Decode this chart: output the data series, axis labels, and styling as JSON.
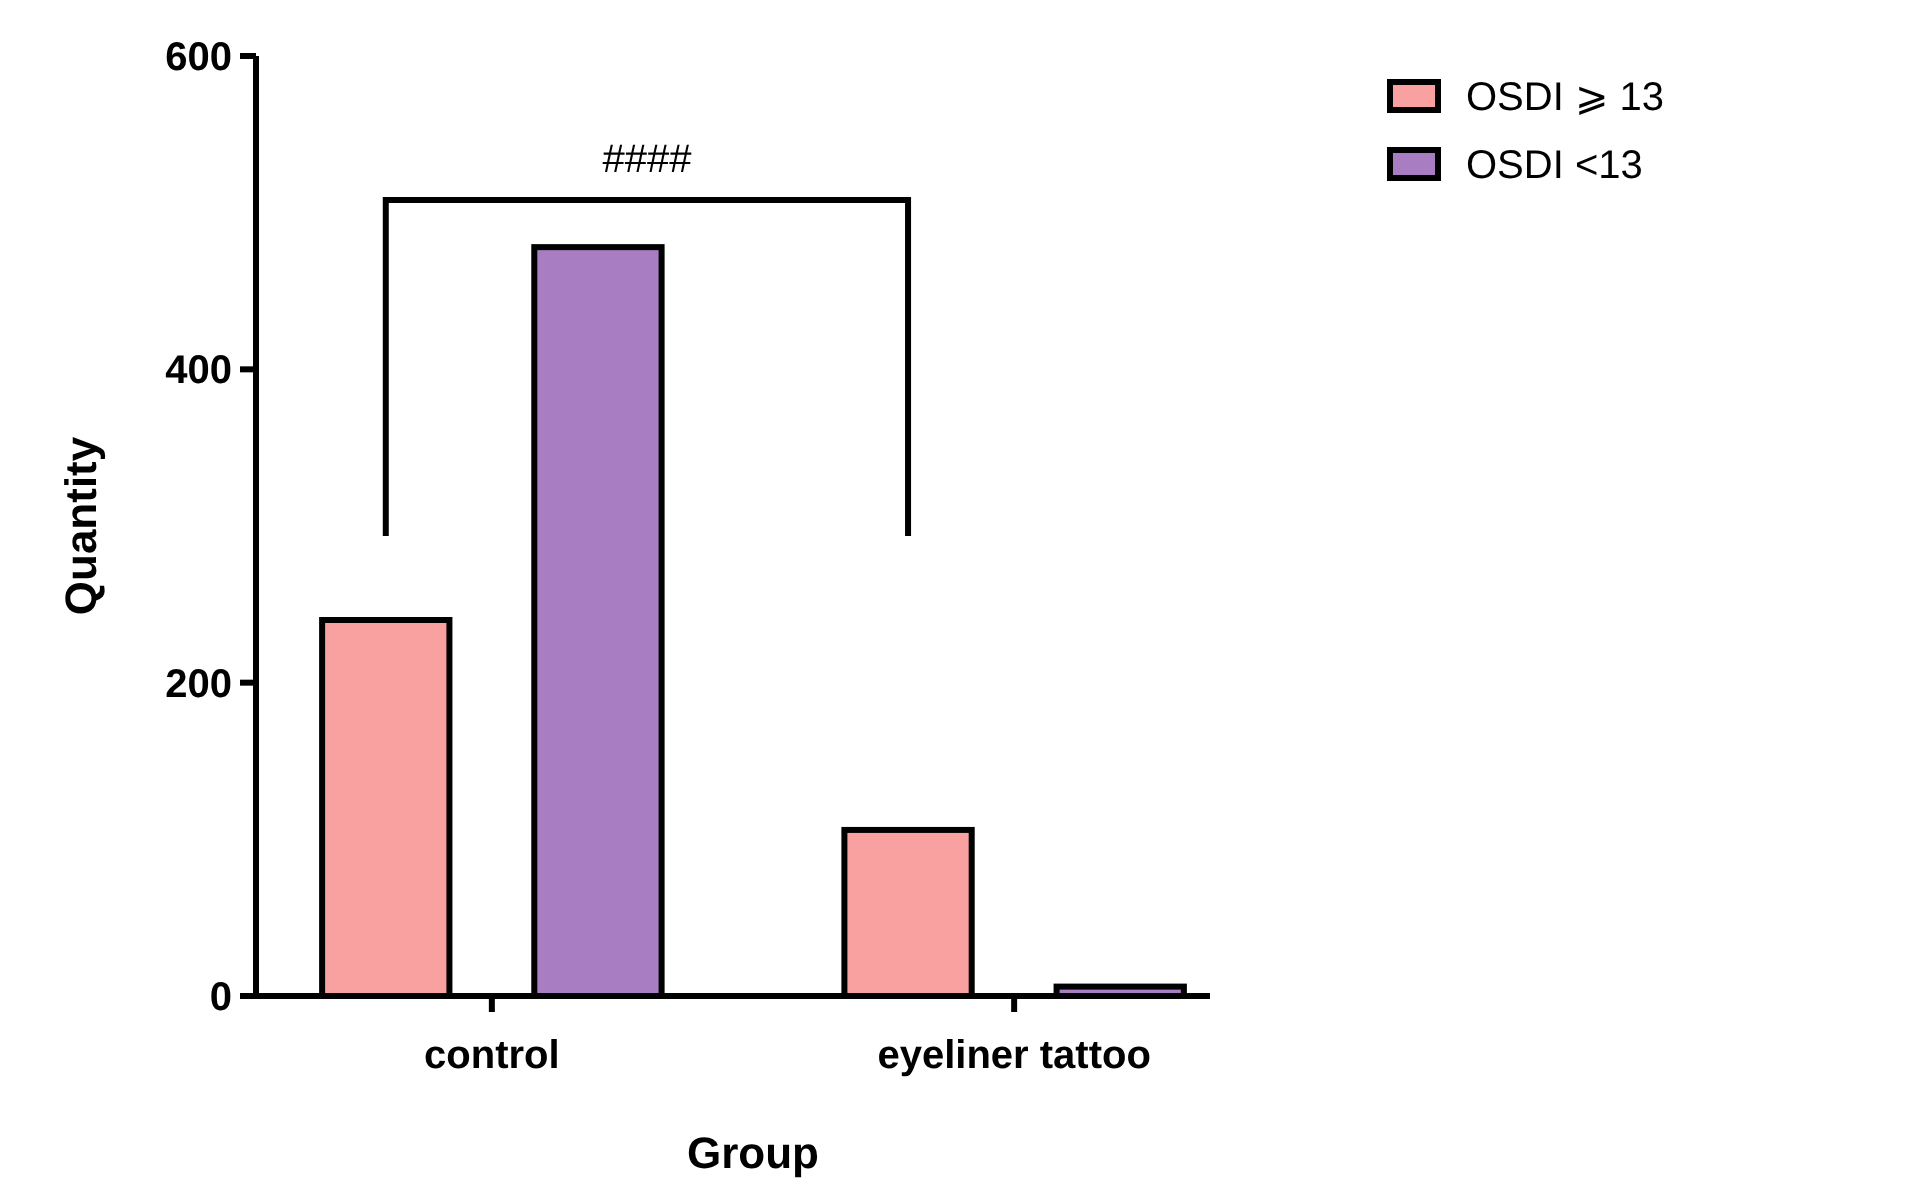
{
  "chart_data": {
    "type": "bar",
    "xlabel": "Group",
    "ylabel": "Quantity",
    "categories": [
      "control",
      "eyeliner tattoo"
    ],
    "series": [
      {
        "name": "OSDI ⩾ 13",
        "color": "#f9a0a0",
        "values": [
          240,
          106
        ]
      },
      {
        "name": "OSDI <13",
        "color": "#a87dc2",
        "values": [
          478,
          6
        ]
      }
    ],
    "ylim": [
      0,
      600
    ],
    "yticks": [
      0,
      200,
      400,
      600
    ],
    "grid": false,
    "legend": "top right",
    "annotations": [
      "####"
    ]
  }
}
